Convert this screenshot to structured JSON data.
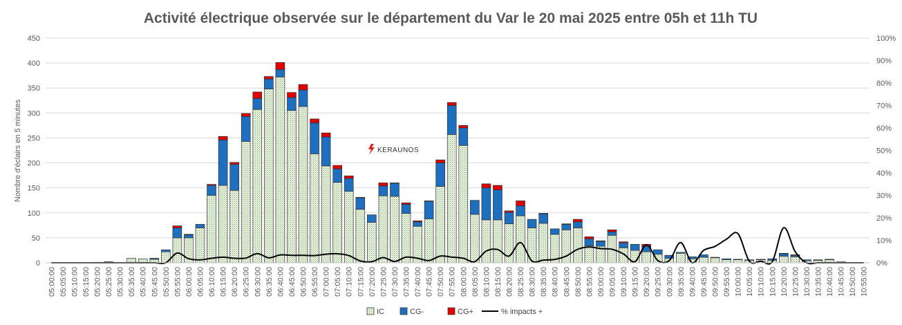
{
  "chart_data": {
    "type": "bar",
    "title": "Activité électrique observée sur le département du Var le 20 mai 2025 entre 05h et 11h TU",
    "ylabel": "Nombre d'éclairs en 5 minutes",
    "y2label": "",
    "ylim": [
      0,
      450
    ],
    "y2lim": [
      0,
      100
    ],
    "y_ticks": [
      "0",
      "50",
      "100",
      "150",
      "200",
      "250",
      "300",
      "350",
      "400",
      "450"
    ],
    "y2_ticks": [
      "0%",
      "10%",
      "20%",
      "30%",
      "40%",
      "50%",
      "60%",
      "70%",
      "80%",
      "90%",
      "100%"
    ],
    "grid": true,
    "legend_position": "bottom",
    "logo_text": "KERAUNOS",
    "colors": {
      "IC": "#d9ead3",
      "CG-": "#1f6fbf",
      "CG+": "#e00000",
      "line": "#000000"
    },
    "categories": [
      "05:00:00",
      "05:05:00",
      "05:10:00",
      "05:15:00",
      "05:20:00",
      "05:25:00",
      "05:30:00",
      "05:35:00",
      "05:40:00",
      "05:45:00",
      "05:50:00",
      "05:55:00",
      "06:00:00",
      "06:05:00",
      "06:10:00",
      "06:15:00",
      "06:20:00",
      "06:25:00",
      "06:30:00",
      "06:35:00",
      "06:40:00",
      "06:45:00",
      "06:50:00",
      "06:55:00",
      "07:00:00",
      "07:05:00",
      "07:10:00",
      "07:15:00",
      "07:20:00",
      "07:25:00",
      "07:30:00",
      "07:35:00",
      "07:40:00",
      "07:45:00",
      "07:50:00",
      "07:55:00",
      "08:00:00",
      "08:05:00",
      "08:10:00",
      "08:15:00",
      "08:20:00",
      "08:25:00",
      "08:30:00",
      "08:35:00",
      "08:40:00",
      "08:45:00",
      "08:50:00",
      "08:55:00",
      "09:00:00",
      "09:05:00",
      "09:10:00",
      "09:15:00",
      "09:20:00",
      "09:25:00",
      "09:30:00",
      "09:35:00",
      "09:40:00",
      "09:45:00",
      "09:50:00",
      "09:55:00",
      "10:00:00",
      "10:05:00",
      "10:10:00",
      "10:15:00",
      "10:20:00",
      "10:25:00",
      "10:30:00",
      "10:35:00",
      "10:40:00",
      "10:45:00",
      "10:50:00",
      "10:55:00"
    ],
    "series": [
      {
        "name": "IC",
        "values": [
          0,
          0,
          0,
          0,
          1,
          1,
          0,
          9,
          8,
          7,
          22,
          50,
          50,
          70,
          135,
          155,
          145,
          243,
          307,
          348,
          372,
          305,
          313,
          218,
          194,
          161,
          143,
          107,
          81,
          134,
          133,
          99,
          73,
          88,
          153,
          257,
          235,
          97,
          86,
          86,
          78,
          94,
          70,
          79,
          57,
          66,
          70,
          34,
          33,
          55,
          30,
          25,
          22,
          17,
          9,
          19,
          8,
          11,
          10,
          6,
          6,
          5,
          6,
          5,
          13,
          12,
          4,
          5,
          6,
          2,
          0,
          0
        ]
      },
      {
        "name": "CG-",
        "values": [
          0,
          0,
          0,
          0,
          0,
          1,
          0,
          0,
          0,
          2,
          4,
          20,
          6,
          7,
          20,
          91,
          52,
          50,
          22,
          20,
          15,
          26,
          33,
          62,
          58,
          27,
          26,
          23,
          15,
          20,
          26,
          18,
          9,
          35,
          47,
          58,
          35,
          28,
          64,
          60,
          23,
          20,
          17,
          19,
          11,
          11,
          12,
          14,
          10,
          7,
          10,
          12,
          11,
          9,
          6,
          2,
          4,
          5,
          1,
          2,
          1,
          1,
          1,
          3,
          5,
          3,
          2,
          1,
          1,
          0,
          0,
          0
        ]
      },
      {
        "name": "CG+",
        "values": [
          0,
          0,
          0,
          0,
          0,
          0,
          0,
          0,
          0,
          0,
          0,
          4,
          1,
          0,
          2,
          7,
          4,
          6,
          13,
          5,
          14,
          10,
          11,
          8,
          8,
          7,
          5,
          1,
          0,
          6,
          1,
          3,
          2,
          1,
          6,
          6,
          5,
          0,
          8,
          9,
          3,
          10,
          0,
          1,
          0,
          1,
          5,
          4,
          1,
          4,
          2,
          0,
          4,
          0,
          0,
          0,
          0,
          0,
          0,
          0,
          0,
          0,
          0,
          0,
          1,
          1,
          0,
          0,
          0,
          0,
          0,
          0
        ]
      },
      {
        "name": "% impacts +",
        "axis": "y2",
        "values": [
          0,
          0,
          0,
          0,
          0,
          0,
          0,
          0,
          0,
          0,
          0,
          4.3,
          1.8,
          1.3,
          2,
          2.5,
          2,
          2.1,
          4.1,
          2.2,
          3.5,
          3.3,
          3.3,
          3.2,
          3.8,
          4,
          3.2,
          0.8,
          0.5,
          2.3,
          0.6,
          2.5,
          2,
          1,
          3,
          2.5,
          2,
          0.5,
          5.2,
          5.9,
          3,
          9,
          0.8,
          1.2,
          1.5,
          3,
          6,
          7,
          6.3,
          6,
          3.9,
          0.5,
          8,
          1,
          1,
          9,
          0,
          5.5,
          7.3,
          10.5,
          13,
          0.7,
          0.7,
          0.5,
          15.6,
          5,
          0,
          0,
          0,
          0,
          0,
          0
        ]
      }
    ]
  },
  "legend": {
    "ic_label": "IC",
    "cgm_label": "CG-",
    "cgp_label": "CG+",
    "line_label": "% impacts +"
  }
}
